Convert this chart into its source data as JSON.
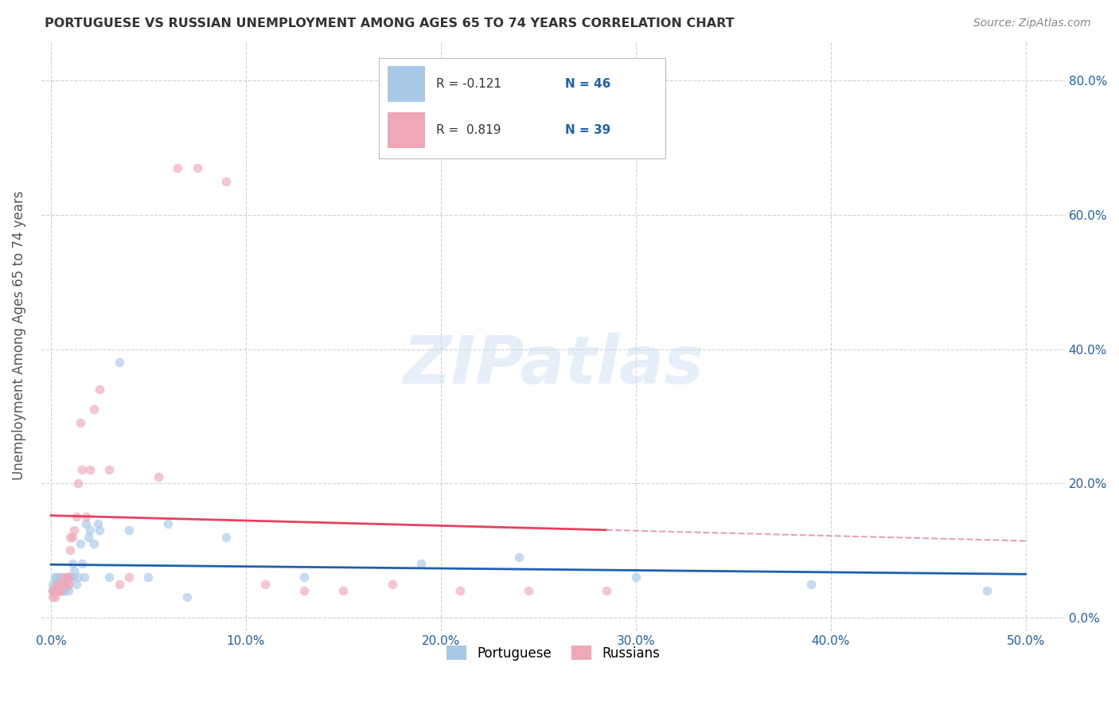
{
  "title": "PORTUGUESE VS RUSSIAN UNEMPLOYMENT AMONG AGES 65 TO 74 YEARS CORRELATION CHART",
  "source": "Source: ZipAtlas.com",
  "ylabel": "Unemployment Among Ages 65 to 74 years",
  "xlim": [
    -0.005,
    0.52
  ],
  "ylim": [
    -0.02,
    0.86
  ],
  "portuguese_x": [
    0.001,
    0.001,
    0.002,
    0.002,
    0.003,
    0.003,
    0.003,
    0.004,
    0.004,
    0.005,
    0.005,
    0.006,
    0.006,
    0.007,
    0.007,
    0.008,
    0.009,
    0.009,
    0.01,
    0.011,
    0.011,
    0.012,
    0.013,
    0.014,
    0.015,
    0.016,
    0.017,
    0.018,
    0.019,
    0.02,
    0.022,
    0.024,
    0.025,
    0.03,
    0.035,
    0.04,
    0.05,
    0.06,
    0.07,
    0.09,
    0.13,
    0.19,
    0.24,
    0.3,
    0.39,
    0.48
  ],
  "portuguese_y": [
    0.05,
    0.04,
    0.06,
    0.04,
    0.06,
    0.05,
    0.04,
    0.05,
    0.04,
    0.06,
    0.04,
    0.05,
    0.04,
    0.05,
    0.04,
    0.06,
    0.05,
    0.04,
    0.06,
    0.08,
    0.06,
    0.07,
    0.05,
    0.06,
    0.11,
    0.08,
    0.06,
    0.14,
    0.12,
    0.13,
    0.11,
    0.14,
    0.13,
    0.06,
    0.38,
    0.13,
    0.06,
    0.14,
    0.03,
    0.12,
    0.06,
    0.08,
    0.09,
    0.06,
    0.05,
    0.04
  ],
  "russian_x": [
    0.001,
    0.001,
    0.002,
    0.002,
    0.003,
    0.004,
    0.005,
    0.005,
    0.006,
    0.007,
    0.008,
    0.009,
    0.009,
    0.01,
    0.01,
    0.011,
    0.012,
    0.013,
    0.014,
    0.015,
    0.016,
    0.018,
    0.02,
    0.022,
    0.025,
    0.03,
    0.035,
    0.04,
    0.055,
    0.065,
    0.075,
    0.09,
    0.11,
    0.13,
    0.15,
    0.175,
    0.21,
    0.245,
    0.285
  ],
  "russian_y": [
    0.03,
    0.04,
    0.04,
    0.03,
    0.05,
    0.04,
    0.05,
    0.04,
    0.06,
    0.05,
    0.06,
    0.06,
    0.05,
    0.1,
    0.12,
    0.12,
    0.13,
    0.15,
    0.2,
    0.29,
    0.22,
    0.15,
    0.22,
    0.31,
    0.34,
    0.22,
    0.05,
    0.06,
    0.21,
    0.67,
    0.67,
    0.65,
    0.05,
    0.04,
    0.04,
    0.05,
    0.04,
    0.04,
    0.04
  ],
  "portuguese_color": "#a8c8e8",
  "russian_color": "#f0a8b8",
  "portuguese_line_color": "#2060b0",
  "russian_line_color": "#e84060",
  "dashed_line_color": "#e8a0b0",
  "R_portuguese": -0.121,
  "N_portuguese": 46,
  "R_russian": 0.819,
  "N_russian": 39,
  "watermark": "ZIPatlas",
  "marker_size": 70,
  "marker_alpha": 0.65,
  "legend_R_color": "#333333",
  "legend_N_color": "#2060b0",
  "tick_color": "#2060b0",
  "title_color": "#333333",
  "ylabel_color": "#555555",
  "source_color": "#888888",
  "grid_color": "#cccccc"
}
